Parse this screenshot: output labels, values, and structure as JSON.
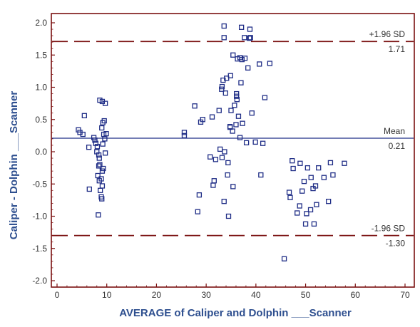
{
  "colors": {
    "frame": "#7b1111",
    "marker": "#1f2d86",
    "mean": "#1f2d86",
    "limits": "#7b1111",
    "axis_title": "#2e4f8f"
  },
  "chart_data": {
    "type": "scatter",
    "xlabel": "AVERAGE of Caliper and Dolphin ___Scanner",
    "ylabel": "Caliper - Dolphin ___Scanner",
    "xlim": [
      0,
      70
    ],
    "ylim": [
      -2.1,
      2.1
    ],
    "x_ticks": [
      "0",
      "10",
      "20",
      "30",
      "40",
      "50",
      "60",
      "70"
    ],
    "y_ticks": [
      "2.0",
      "1.5",
      "1.0",
      "0.5",
      "0.0",
      "-0.5",
      "-1.0",
      "-1.5",
      "-2.0"
    ],
    "grid": false,
    "reference_lines": [
      {
        "label": "+1.96 SD",
        "value_label": "1.71",
        "y": 1.71,
        "style": "dashed"
      },
      {
        "label": "Mean",
        "value_label": "0.21",
        "y": 0.21,
        "style": "solid"
      },
      {
        "label": "-1.96 SD",
        "value_label": "-1.30",
        "y": -1.3,
        "style": "dashed"
      }
    ],
    "points": [
      [
        4.3,
        0.34
      ],
      [
        4.6,
        0.3
      ],
      [
        5.2,
        0.27
      ],
      [
        5.5,
        0.56
      ],
      [
        6.4,
        0.07
      ],
      [
        6.5,
        -0.58
      ],
      [
        7.4,
        0.22
      ],
      [
        7.6,
        0.18
      ],
      [
        7.8,
        0.13
      ],
      [
        8.1,
        0.08
      ],
      [
        8.0,
        0.0
      ],
      [
        8.4,
        -0.05
      ],
      [
        8.5,
        -0.1
      ],
      [
        8.6,
        -0.2
      ],
      [
        8.2,
        -0.37
      ],
      [
        8.5,
        -0.45
      ],
      [
        8.7,
        -0.6
      ],
      [
        8.3,
        -0.98
      ],
      [
        8.9,
        -0.7
      ],
      [
        9.0,
        -0.73
      ],
      [
        8.6,
        0.8
      ],
      [
        9.1,
        0.78
      ],
      [
        9.7,
        0.75
      ],
      [
        9.2,
        0.45
      ],
      [
        9.5,
        0.48
      ],
      [
        9.0,
        0.37
      ],
      [
        9.4,
        0.27
      ],
      [
        9.9,
        0.28
      ],
      [
        9.6,
        0.2
      ],
      [
        9.2,
        0.12
      ],
      [
        9.7,
        -0.02
      ],
      [
        9.3,
        -0.26
      ],
      [
        9.1,
        -0.3
      ],
      [
        8.9,
        -0.42
      ],
      [
        9.1,
        -0.53
      ],
      [
        8.4,
        -0.22
      ],
      [
        25.6,
        0.25
      ],
      [
        25.6,
        0.3
      ],
      [
        27.7,
        0.71
      ],
      [
        28.3,
        -0.93
      ],
      [
        28.6,
        -0.67
      ],
      [
        28.9,
        0.46
      ],
      [
        29.3,
        0.5
      ],
      [
        30.8,
        -0.08
      ],
      [
        31.2,
        0.54
      ],
      [
        31.4,
        -0.52
      ],
      [
        31.6,
        -0.45
      ],
      [
        31.9,
        -0.12
      ],
      [
        32.6,
        0.64
      ],
      [
        32.8,
        0.04
      ],
      [
        33.2,
        -0.09
      ],
      [
        33.1,
        0.97
      ],
      [
        33.2,
        1.01
      ],
      [
        33.4,
        1.11
      ],
      [
        33.6,
        1.77
      ],
      [
        33.6,
        1.95
      ],
      [
        33.6,
        -0.77
      ],
      [
        33.7,
        0.0
      ],
      [
        33.9,
        0.91
      ],
      [
        34.1,
        1.14
      ],
      [
        34.3,
        -0.36
      ],
      [
        34.4,
        -0.17
      ],
      [
        34.5,
        -1.0
      ],
      [
        34.8,
        0.39
      ],
      [
        34.8,
        0.38
      ],
      [
        34.9,
        1.18
      ],
      [
        35.0,
        0.64
      ],
      [
        35.3,
        0.32
      ],
      [
        35.4,
        1.5
      ],
      [
        35.4,
        -0.54
      ],
      [
        35.7,
        0.72
      ],
      [
        36.0,
        0.42
      ],
      [
        36.1,
        0.86
      ],
      [
        36.1,
        0.9
      ],
      [
        36.2,
        0.81
      ],
      [
        36.3,
        1.44
      ],
      [
        36.5,
        0.55
      ],
      [
        36.8,
        1.46
      ],
      [
        36.8,
        0.22
      ],
      [
        37.0,
        1.07
      ],
      [
        37.1,
        1.93
      ],
      [
        37.2,
        1.43
      ],
      [
        37.3,
        0.44
      ],
      [
        37.7,
        1.77
      ],
      [
        37.8,
        1.45
      ],
      [
        38.1,
        0.14
      ],
      [
        38.4,
        1.3
      ],
      [
        38.7,
        1.76
      ],
      [
        38.8,
        1.9
      ],
      [
        38.9,
        1.77
      ],
      [
        39.2,
        0.6
      ],
      [
        39.9,
        0.15
      ],
      [
        40.7,
        1.36
      ],
      [
        41.0,
        -0.36
      ],
      [
        41.4,
        0.13
      ],
      [
        41.8,
        0.84
      ],
      [
        42.8,
        1.37
      ],
      [
        45.7,
        -1.66
      ],
      [
        46.7,
        -0.63
      ],
      [
        46.9,
        -0.71
      ],
      [
        47.3,
        -0.14
      ],
      [
        47.5,
        -0.26
      ],
      [
        48.3,
        -0.95
      ],
      [
        48.8,
        -0.84
      ],
      [
        49.7,
        -0.46
      ],
      [
        50.0,
        -1.12
      ],
      [
        50.2,
        -0.96
      ],
      [
        50.4,
        -0.25
      ],
      [
        51.0,
        -0.9
      ],
      [
        51.1,
        -0.4
      ],
      [
        51.7,
        -1.12
      ],
      [
        52.0,
        -0.53
      ],
      [
        52.2,
        -0.82
      ],
      [
        52.6,
        -0.25
      ],
      [
        53.7,
        -0.4
      ],
      [
        54.6,
        -0.77
      ],
      [
        55.0,
        -0.17
      ],
      [
        55.5,
        -0.36
      ],
      [
        57.8,
        -0.18
      ],
      [
        49.3,
        -0.61
      ],
      [
        51.5,
        -0.57
      ],
      [
        48.9,
        -0.18
      ]
    ]
  }
}
